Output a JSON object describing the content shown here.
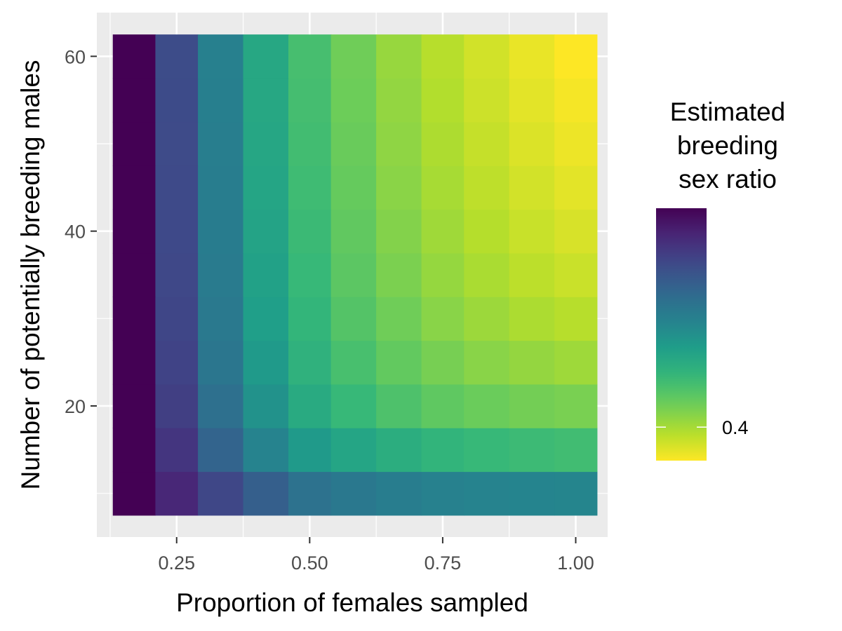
{
  "chart_data": {
    "type": "heatmap",
    "xlabel": "Proportion of females sampled",
    "ylabel": "Number of potentially breeding males",
    "x_ticks": [
      0.25,
      0.5,
      0.75,
      1.0
    ],
    "x_tick_labels": [
      "0.25",
      "0.50",
      "0.75",
      "1.00"
    ],
    "y_ticks": [
      20,
      40,
      60
    ],
    "y_tick_labels": [
      "20",
      "40",
      "60"
    ],
    "xlim": [
      0.1,
      1.06
    ],
    "ylim": [
      5,
      65
    ],
    "x_values": [
      0.17,
      0.25,
      0.33,
      0.42,
      0.5,
      0.58,
      0.67,
      0.75,
      0.83,
      0.92,
      1.0
    ],
    "y_values": [
      10,
      15,
      20,
      25,
      30,
      35,
      40,
      45,
      50,
      55,
      60
    ],
    "values": [
      [
        0.962,
        0.892,
        0.825,
        0.768,
        0.718,
        0.702,
        0.688,
        0.678,
        0.672,
        0.668,
        0.665
      ],
      [
        0.962,
        0.862,
        0.755,
        0.672,
        0.612,
        0.582,
        0.558,
        0.54,
        0.528,
        0.52,
        0.515
      ],
      [
        0.962,
        0.842,
        0.725,
        0.632,
        0.568,
        0.528,
        0.498,
        0.476,
        0.462,
        0.452,
        0.446
      ],
      [
        0.962,
        0.832,
        0.708,
        0.612,
        0.548,
        0.505,
        0.472,
        0.448,
        0.43,
        0.418,
        0.408
      ],
      [
        0.962,
        0.826,
        0.7,
        0.6,
        0.536,
        0.49,
        0.456,
        0.43,
        0.41,
        0.394,
        0.383
      ],
      [
        0.962,
        0.822,
        0.694,
        0.592,
        0.528,
        0.48,
        0.444,
        0.417,
        0.396,
        0.378,
        0.365
      ],
      [
        0.962,
        0.82,
        0.69,
        0.587,
        0.522,
        0.473,
        0.436,
        0.407,
        0.385,
        0.366,
        0.351
      ],
      [
        0.962,
        0.818,
        0.687,
        0.583,
        0.517,
        0.468,
        0.429,
        0.399,
        0.376,
        0.356,
        0.34
      ],
      [
        0.962,
        0.816,
        0.684,
        0.58,
        0.513,
        0.463,
        0.424,
        0.393,
        0.369,
        0.348,
        0.33
      ],
      [
        0.962,
        0.815,
        0.682,
        0.577,
        0.51,
        0.459,
        0.419,
        0.388,
        0.362,
        0.34,
        0.322
      ],
      [
        0.962,
        0.814,
        0.68,
        0.575,
        0.507,
        0.456,
        0.415,
        0.383,
        0.357,
        0.334,
        0.314
      ]
    ],
    "legend": {
      "title_lines": [
        "Estimated",
        "breeding",
        "sex ratio"
      ],
      "breaks": [
        0.4
      ],
      "break_labels": [
        "0.4"
      ],
      "limits": [
        0.314,
        0.962
      ],
      "placement": "right"
    },
    "panel_background": "#EBEBEB",
    "grid_color": "#FFFFFF",
    "grid": true,
    "palette": [
      "#440154",
      "#482878",
      "#3E4A89",
      "#31688E",
      "#26828E",
      "#1F9E89",
      "#35B779",
      "#6DCD59",
      "#B4DE2C",
      "#FDE725"
    ]
  }
}
